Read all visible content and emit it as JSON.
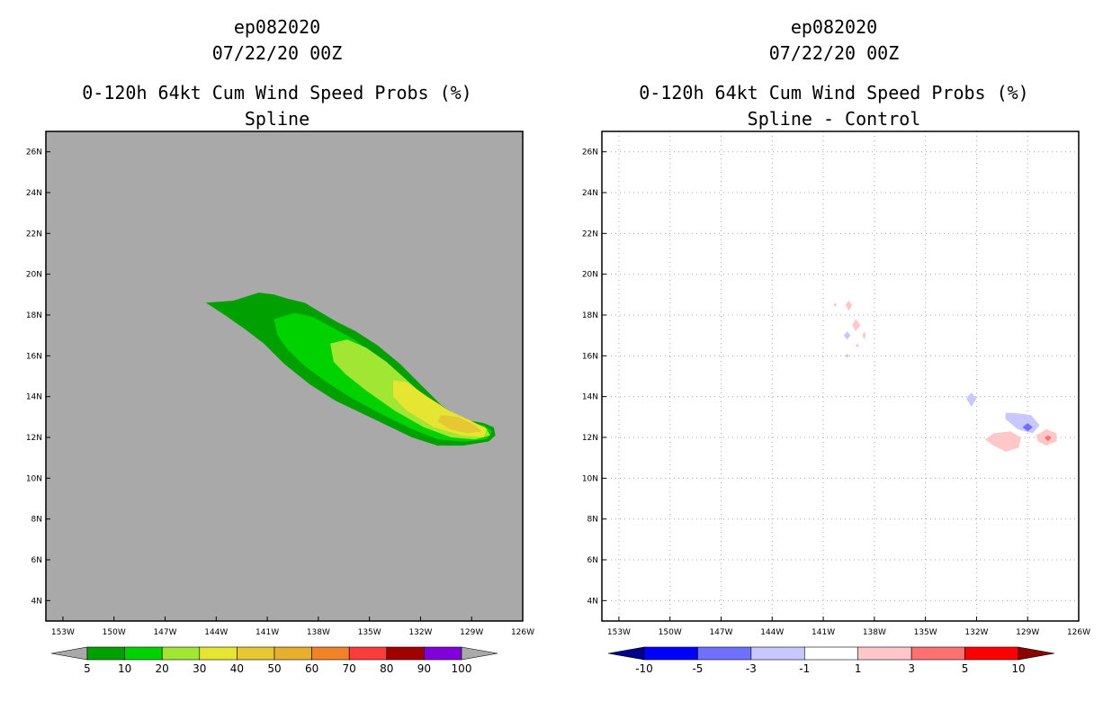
{
  "chart_data": [
    {
      "type": "heatmap",
      "storm_id": "ep082020",
      "date": "07/22/20 00Z",
      "title": "0-120h 64kt Cum Wind Speed Probs (%)",
      "subtitle": "Spline",
      "x_ticks": [
        "153W",
        "150W",
        "147W",
        "144W",
        "141W",
        "138W",
        "135W",
        "132W",
        "129W",
        "126W"
      ],
      "y_ticks": [
        "4N",
        "6N",
        "8N",
        "10N",
        "12N",
        "14N",
        "16N",
        "18N",
        "20N",
        "22N",
        "24N",
        "26N"
      ],
      "xlim": [
        -154,
        -126
      ],
      "ylim": [
        3,
        27
      ],
      "background_color": "#a9a9a9",
      "grid": false,
      "contour_levels": [
        5,
        10,
        20,
        30,
        40,
        50,
        60,
        70,
        80,
        90,
        100
      ],
      "colorbar_labels": [
        "5",
        "10",
        "20",
        "30",
        "40",
        "50",
        "60",
        "70",
        "80",
        "90",
        "100"
      ],
      "colorbar_colors": [
        "#a9a9a9",
        "#00a000",
        "#00d200",
        "#a0e632",
        "#e6e632",
        "#e6c832",
        "#e6af2d",
        "#f08228",
        "#fa3c3c",
        "#a00000",
        "#8200dc",
        "#a9a9a9"
      ],
      "contours": [
        {
          "level": 5,
          "color": "#00a000",
          "polygon": [
            [
              -144.6,
              18.6
            ],
            [
              -143.0,
              18.7
            ],
            [
              -141.5,
              19.1
            ],
            [
              -140.6,
              19.0
            ],
            [
              -139.8,
              18.8
            ],
            [
              -138.8,
              18.6
            ],
            [
              -138.0,
              18.2
            ],
            [
              -137.0,
              17.7
            ],
            [
              -135.8,
              17.2
            ],
            [
              -134.5,
              16.5
            ],
            [
              -133.2,
              15.6
            ],
            [
              -132.0,
              14.6
            ],
            [
              -130.8,
              13.6
            ],
            [
              -129.6,
              12.9
            ],
            [
              -128.3,
              12.7
            ],
            [
              -127.7,
              12.5
            ],
            [
              -127.6,
              12.1
            ],
            [
              -128.0,
              11.8
            ],
            [
              -129.5,
              11.6
            ],
            [
              -131.0,
              11.6
            ],
            [
              -132.5,
              12.0
            ],
            [
              -134.0,
              12.6
            ],
            [
              -135.5,
              13.2
            ],
            [
              -137.0,
              13.8
            ],
            [
              -138.5,
              14.6
            ],
            [
              -140.0,
              15.6
            ],
            [
              -141.2,
              16.6
            ],
            [
              -142.3,
              17.3
            ],
            [
              -143.5,
              18.0
            ]
          ]
        },
        {
          "level": 10,
          "color": "#00d200",
          "polygon": [
            [
              -140.6,
              17.8
            ],
            [
              -139.4,
              18.1
            ],
            [
              -138.3,
              17.9
            ],
            [
              -137.2,
              17.4
            ],
            [
              -135.9,
              16.8
            ],
            [
              -134.6,
              16.0
            ],
            [
              -133.3,
              15.0
            ],
            [
              -132.0,
              14.0
            ],
            [
              -130.8,
              13.3
            ],
            [
              -129.5,
              12.8
            ],
            [
              -128.3,
              12.6
            ],
            [
              -127.8,
              12.3
            ],
            [
              -128.1,
              11.9
            ],
            [
              -129.5,
              11.8
            ],
            [
              -131.0,
              11.9
            ],
            [
              -132.5,
              12.4
            ],
            [
              -134.2,
              13.1
            ],
            [
              -136.0,
              13.9
            ],
            [
              -137.5,
              14.7
            ],
            [
              -138.8,
              15.5
            ],
            [
              -139.8,
              16.3
            ],
            [
              -140.4,
              17.0
            ]
          ]
        },
        {
          "level": 20,
          "color": "#a0e632",
          "polygon": [
            [
              -137.3,
              16.6
            ],
            [
              -136.3,
              16.8
            ],
            [
              -135.2,
              16.4
            ],
            [
              -134.0,
              15.7
            ],
            [
              -132.8,
              14.8
            ],
            [
              -131.6,
              13.9
            ],
            [
              -130.4,
              13.2
            ],
            [
              -129.2,
              12.8
            ],
            [
              -128.2,
              12.5
            ],
            [
              -127.9,
              12.1
            ],
            [
              -128.8,
              11.9
            ],
            [
              -130.2,
              12.0
            ],
            [
              -131.8,
              12.5
            ],
            [
              -133.5,
              13.3
            ],
            [
              -135.2,
              14.3
            ],
            [
              -136.4,
              15.1
            ],
            [
              -137.1,
              15.7
            ]
          ]
        },
        {
          "level": 30,
          "color": "#e6e632",
          "polygon": [
            [
              -133.6,
              14.8
            ],
            [
              -132.8,
              14.7
            ],
            [
              -131.6,
              14.0
            ],
            [
              -130.3,
              13.3
            ],
            [
              -129.0,
              12.8
            ],
            [
              -128.1,
              12.4
            ],
            [
              -128.3,
              12.0
            ],
            [
              -129.6,
              12.1
            ],
            [
              -131.2,
              12.5
            ],
            [
              -132.8,
              13.3
            ],
            [
              -133.6,
              14.0
            ]
          ]
        },
        {
          "level": 40,
          "color": "#e6c832",
          "polygon": [
            [
              -130.8,
              13.1
            ],
            [
              -129.8,
              13.0
            ],
            [
              -128.8,
              12.6
            ],
            [
              -128.4,
              12.3
            ],
            [
              -129.2,
              12.2
            ],
            [
              -130.3,
              12.4
            ],
            [
              -131.0,
              12.8
            ]
          ]
        }
      ]
    },
    {
      "type": "heatmap",
      "storm_id": "ep082020",
      "date": "07/22/20 00Z",
      "title": "0-120h 64kt Cum Wind Speed Probs (%)",
      "subtitle": "Spline - Control",
      "x_ticks": [
        "153W",
        "150W",
        "147W",
        "144W",
        "141W",
        "138W",
        "135W",
        "132W",
        "129W",
        "126W"
      ],
      "y_ticks": [
        "4N",
        "6N",
        "8N",
        "10N",
        "12N",
        "14N",
        "16N",
        "18N",
        "20N",
        "22N",
        "24N",
        "26N"
      ],
      "xlim": [
        -154,
        -126
      ],
      "ylim": [
        3,
        27
      ],
      "background_color": "#ffffff",
      "grid": true,
      "contour_levels": [
        -10,
        -5,
        -3,
        -1,
        1,
        3,
        5,
        10
      ],
      "colorbar_labels": [
        "-10",
        "-5",
        "-3",
        "-1",
        "1",
        "3",
        "5",
        "10"
      ],
      "colorbar_colors": [
        "#00008b",
        "#0000ff",
        "#7070ff",
        "#c8c8ff",
        "#ffffff",
        "#ffc8c8",
        "#ff7070",
        "#ff0000",
        "#8b0000"
      ],
      "contours": [
        {
          "level": -3,
          "color": "#c8c8ff",
          "polygon": [
            [
              -129.8,
              13.2
            ],
            [
              -128.8,
              13.1
            ],
            [
              -128.3,
              12.6
            ],
            [
              -128.7,
              12.2
            ],
            [
              -129.6,
              12.4
            ],
            [
              -130.3,
              12.9
            ],
            [
              -130.3,
              13.2
            ]
          ]
        },
        {
          "level": -5,
          "color": "#7070ff",
          "polygon": [
            [
              -129.0,
              12.7
            ],
            [
              -128.7,
              12.5
            ],
            [
              -129.0,
              12.3
            ],
            [
              -129.3,
              12.5
            ]
          ]
        },
        {
          "level": -3,
          "color": "#c8c8ff",
          "polygon": [
            [
              -132.3,
              14.2
            ],
            [
              -132.0,
              13.9
            ],
            [
              -132.3,
              13.5
            ],
            [
              -132.6,
              13.9
            ]
          ]
        },
        {
          "level": -3,
          "color": "#c8c8ff",
          "polygon": [
            [
              -139.6,
              17.2
            ],
            [
              -139.4,
              17.0
            ],
            [
              -139.6,
              16.8
            ],
            [
              -139.8,
              17.0
            ]
          ]
        },
        {
          "level": -1,
          "color": "#c8c8ff",
          "polygon": [
            [
              -139.6,
              16.1
            ],
            [
              -139.5,
              16.0
            ],
            [
              -139.6,
              15.9
            ],
            [
              -139.7,
              16.0
            ]
          ]
        },
        {
          "level": 3,
          "color": "#ffc8c8",
          "polygon": [
            [
              -131.0,
              12.2
            ],
            [
              -130.0,
              12.3
            ],
            [
              -129.4,
              12.0
            ],
            [
              -129.5,
              11.5
            ],
            [
              -130.3,
              11.3
            ],
            [
              -131.0,
              11.6
            ],
            [
              -131.5,
              11.9
            ]
          ]
        },
        {
          "level": 3,
          "color": "#ffc8c8",
          "polygon": [
            [
              -127.9,
              12.4
            ],
            [
              -127.3,
              12.2
            ],
            [
              -127.3,
              11.8
            ],
            [
              -127.9,
              11.6
            ],
            [
              -128.4,
              11.8
            ],
            [
              -128.5,
              12.1
            ]
          ]
        },
        {
          "level": 5,
          "color": "#ff7070",
          "polygon": [
            [
              -127.8,
              12.1
            ],
            [
              -127.6,
              12.0
            ],
            [
              -127.8,
              11.8
            ],
            [
              -128.0,
              12.0
            ]
          ]
        },
        {
          "level": 3,
          "color": "#ffc8c8",
          "polygon": [
            [
              -139.5,
              18.7
            ],
            [
              -139.3,
              18.5
            ],
            [
              -139.5,
              18.2
            ],
            [
              -139.7,
              18.5
            ]
          ]
        },
        {
          "level": 3,
          "color": "#ffc8c8",
          "polygon": [
            [
              -139.1,
              17.8
            ],
            [
              -138.8,
              17.5
            ],
            [
              -139.1,
              17.2
            ],
            [
              -139.3,
              17.5
            ]
          ]
        },
        {
          "level": 1,
          "color": "#ffc8c8",
          "polygon": [
            [
              -138.6,
              17.2
            ],
            [
              -138.5,
              17.0
            ],
            [
              -138.6,
              16.8
            ],
            [
              -138.7,
              17.0
            ]
          ]
        },
        {
          "level": 1,
          "color": "#ffc8c8",
          "polygon": [
            [
              -140.3,
              18.6
            ],
            [
              -140.2,
              18.5
            ],
            [
              -140.3,
              18.4
            ],
            [
              -140.4,
              18.5
            ]
          ]
        },
        {
          "level": 1,
          "color": "#ffc8c8",
          "polygon": [
            [
              -139.0,
              16.6
            ],
            [
              -138.9,
              16.5
            ],
            [
              -139.0,
              16.4
            ],
            [
              -139.1,
              16.5
            ]
          ]
        }
      ]
    }
  ]
}
